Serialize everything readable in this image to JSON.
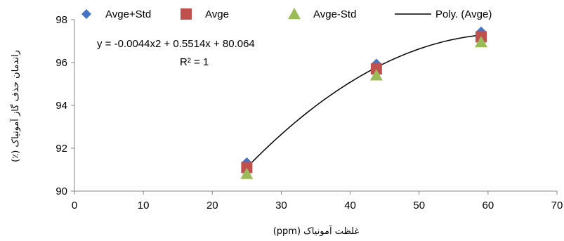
{
  "chart_data": {
    "type": "scatter",
    "xlabel": "غلظت آمونیاک (ppm)",
    "ylabel": "راندمان حذف گاز آمونیاک (٪)",
    "xlim": [
      0,
      70
    ],
    "ylim": [
      90,
      98
    ],
    "x_ticks": [
      0,
      10,
      20,
      30,
      40,
      50,
      60,
      70
    ],
    "y_ticks": [
      90,
      92,
      94,
      96,
      98
    ],
    "grid": false,
    "legend_position": "top",
    "series": [
      {
        "name": "Avge+Std",
        "marker": "diamond",
        "color": "#4472C4",
        "points": [
          [
            25,
            91.35
          ],
          [
            43.8,
            95.95
          ],
          [
            59,
            97.45
          ]
        ]
      },
      {
        "name": "Avge",
        "marker": "square",
        "color": "#C0504D",
        "points": [
          [
            25,
            91.1
          ],
          [
            43.8,
            95.7
          ],
          [
            59,
            97.2
          ]
        ]
      },
      {
        "name": "Avge-Std",
        "marker": "triangle",
        "color": "#9BBB59",
        "points": [
          [
            25,
            90.8
          ],
          [
            43.8,
            95.4
          ],
          [
            59,
            96.95
          ]
        ]
      }
    ],
    "trendline": {
      "name": "Poly. (Avge)",
      "color": "#000000",
      "coefficients": {
        "a": -0.0044,
        "b": 0.5514,
        "c": 80.064
      },
      "x_range": [
        25,
        59
      ]
    },
    "annotations": {
      "equation": "y = -0.0044x2 + 0.5514x + 80.064",
      "r_squared": "R² = 1"
    }
  }
}
